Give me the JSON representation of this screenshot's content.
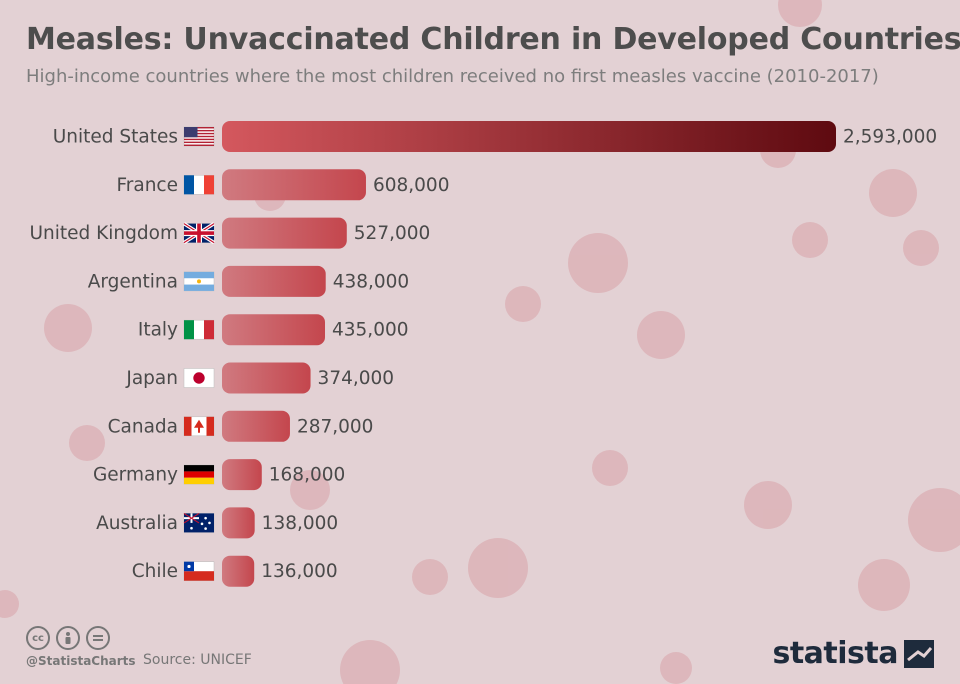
{
  "header": {
    "title": "Measles: Unvaccinated Children in Developed Countries",
    "subtitle": "High-income countries where the most children received no first measles vaccine (2010-2017)"
  },
  "chart_data": {
    "type": "bar",
    "orientation": "horizontal",
    "title": "Measles: Unvaccinated Children in Developed Countries",
    "subtitle": "High-income countries where the most children received no first measles vaccine (2010-2017)",
    "categories": [
      "United States",
      "France",
      "United Kingdom",
      "Argentina",
      "Italy",
      "Japan",
      "Canada",
      "Germany",
      "Australia",
      "Chile"
    ],
    "values": [
      2593000,
      608000,
      527000,
      438000,
      435000,
      374000,
      287000,
      168000,
      138000,
      136000
    ],
    "value_labels": [
      "2,593,000",
      "608,000",
      "527,000",
      "438,000",
      "435,000",
      "374,000",
      "287,000",
      "168,000",
      "138,000",
      "136,000"
    ],
    "flags": [
      "us-flag",
      "fr-flag",
      "gb-flag",
      "ar-flag",
      "it-flag",
      "jp-flag",
      "ca-flag",
      "de-flag",
      "au-flag",
      "cl-flag"
    ],
    "xlim": [
      0,
      2593000
    ],
    "xlabel": "",
    "ylabel": "",
    "grid": false
  },
  "colors": {
    "background": "#e3d1d4",
    "bar": "#cc5a60",
    "bar_highlight_start": "#d4585e",
    "bar_highlight_end": "#5e0a10",
    "dots": "#d9a2a8"
  },
  "footer": {
    "license_icons": [
      "cc-icon",
      "attribution-icon",
      "no-derivatives-icon"
    ],
    "handle": "@StatistaCharts",
    "source": "Source: UNICEF",
    "brand": "statista"
  }
}
